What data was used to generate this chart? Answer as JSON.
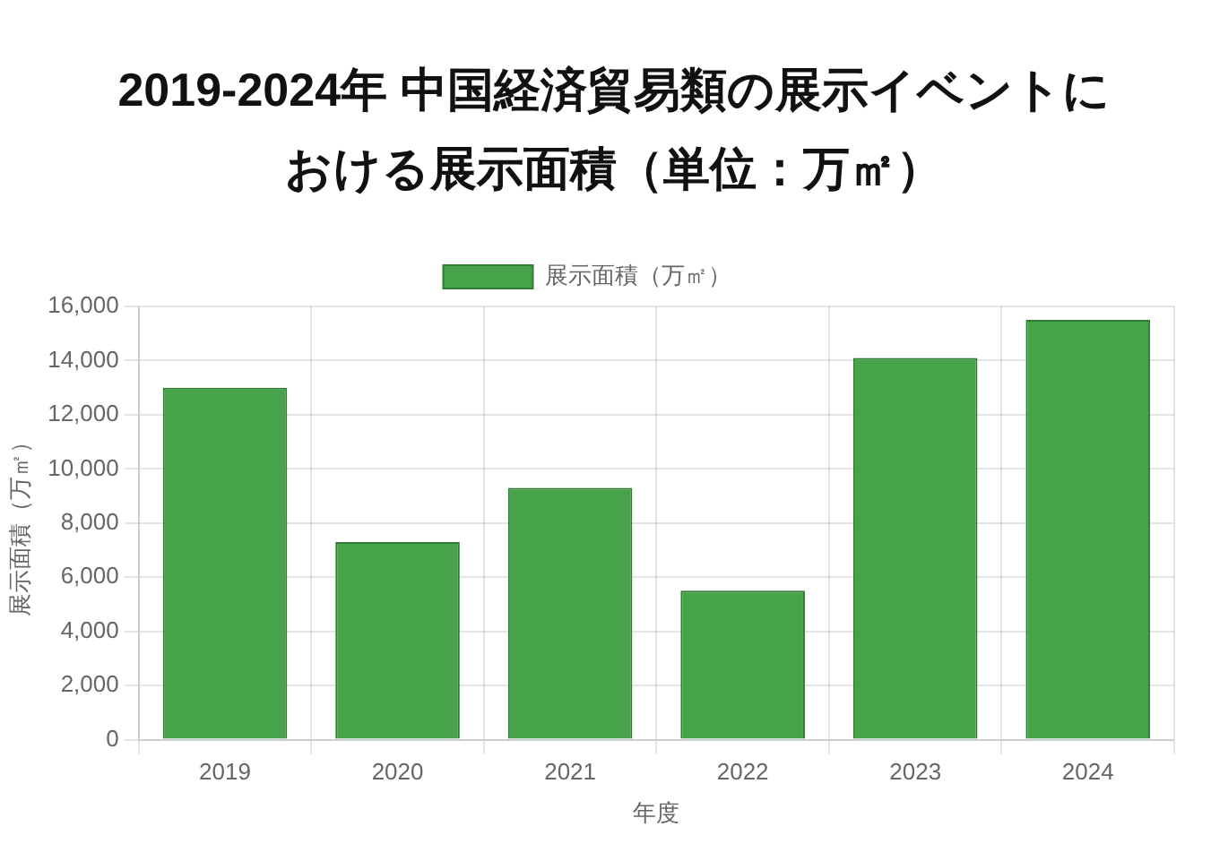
{
  "chart_data": {
    "type": "bar",
    "title": "2019-2024年 中国経済貿易類の展示イベントにおける展示面積（単位：万㎡）",
    "categories": [
      "2019",
      "2020",
      "2021",
      "2022",
      "2023",
      "2024"
    ],
    "series": [
      {
        "name": "展示面積（万㎡）",
        "color": "#46a34a",
        "values": [
          13000,
          7300,
          9300,
          5500,
          14100,
          15500
        ]
      }
    ],
    "xlabel": "年度",
    "ylabel": "展示面積（万㎡）",
    "ylim": [
      0,
      16000
    ],
    "yticks": [
      0,
      {
        "value": 2000,
        "label": "2,000"
      },
      {
        "value": 4000,
        "label": "4,000"
      },
      {
        "value": 6000,
        "label": "6,000"
      },
      {
        "value": 8000,
        "label": "8,000"
      },
      {
        "value": 10000,
        "label": "10,000"
      },
      {
        "value": 12000,
        "label": "12,000"
      },
      {
        "value": 14000,
        "label": "14,000"
      },
      {
        "value": 16000,
        "label": "16,000"
      }
    ],
    "grid": true,
    "legend": "top"
  }
}
